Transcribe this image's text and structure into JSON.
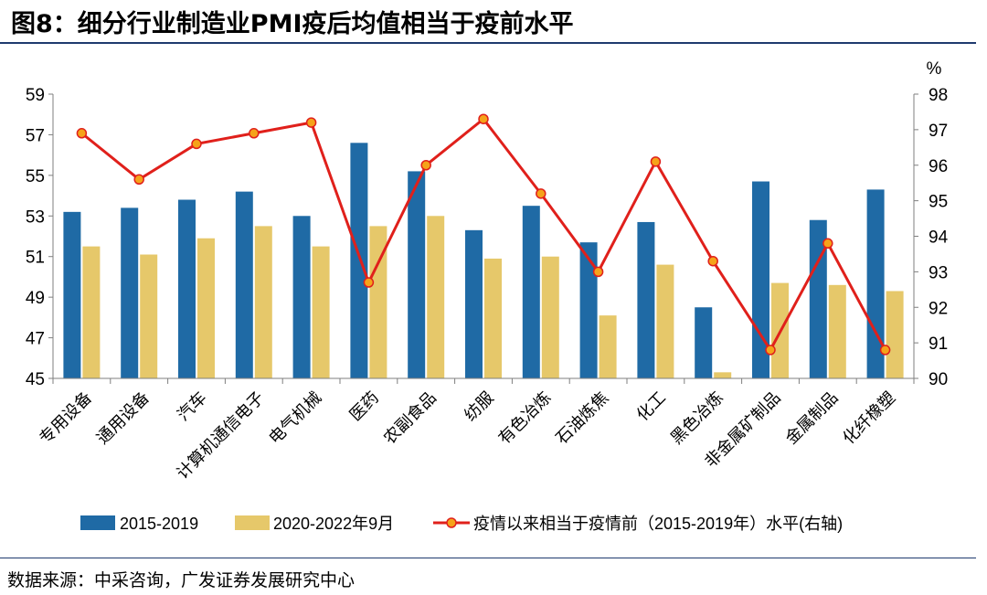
{
  "title": "图8：细分行业制造业PMI疫后均值相当于疫前水平",
  "source": "数据来源：中采咨询，广发证券发展研究中心",
  "colors": {
    "bar1": "#1f6aa5",
    "bar2": "#e6c86a",
    "line": "#e0201b",
    "marker": "#f5a31a",
    "axis": "#7f7f7f",
    "rule": "#1f3a6e"
  },
  "chart_data": {
    "type": "bar+line",
    "categories": [
      "专用设备",
      "通用设备",
      "汽车",
      "计算机通信电子",
      "电气机械",
      "医药",
      "农副食品",
      "纺服",
      "有色冶炼",
      "石油炼焦",
      "化工",
      "黑色冶炼",
      "非金属矿制品",
      "金属制品",
      "化纤橡塑"
    ],
    "series": [
      {
        "name": "2015-2019",
        "axis": "left",
        "kind": "bar",
        "values": [
          53.2,
          53.4,
          53.8,
          54.2,
          53.0,
          56.6,
          55.2,
          52.3,
          53.5,
          51.7,
          52.7,
          48.5,
          54.7,
          52.8,
          54.3
        ]
      },
      {
        "name": "2020-2022年9月",
        "axis": "left",
        "kind": "bar",
        "values": [
          51.5,
          51.1,
          51.9,
          52.5,
          51.5,
          52.5,
          53.0,
          50.9,
          51.0,
          48.1,
          50.6,
          45.3,
          49.7,
          49.6,
          49.3
        ]
      },
      {
        "name": "疫情以来相当于疫情前（2015-2019年）水平(右轴)",
        "axis": "right",
        "kind": "line",
        "values": [
          96.9,
          95.6,
          96.6,
          96.9,
          97.2,
          92.7,
          96.0,
          97.3,
          95.2,
          93.0,
          96.1,
          93.3,
          90.8,
          93.8,
          90.8
        ]
      }
    ],
    "left_axis": {
      "ylim": [
        45,
        59
      ],
      "ticks": [
        "45",
        "47",
        "49",
        "51",
        "53",
        "55",
        "57",
        "59"
      ]
    },
    "right_axis": {
      "ylim": [
        90,
        98
      ],
      "unit": "%",
      "ticks": [
        "90",
        "91",
        "92",
        "93",
        "94",
        "95",
        "96",
        "97",
        "98"
      ]
    },
    "legend_position": "bottom"
  }
}
